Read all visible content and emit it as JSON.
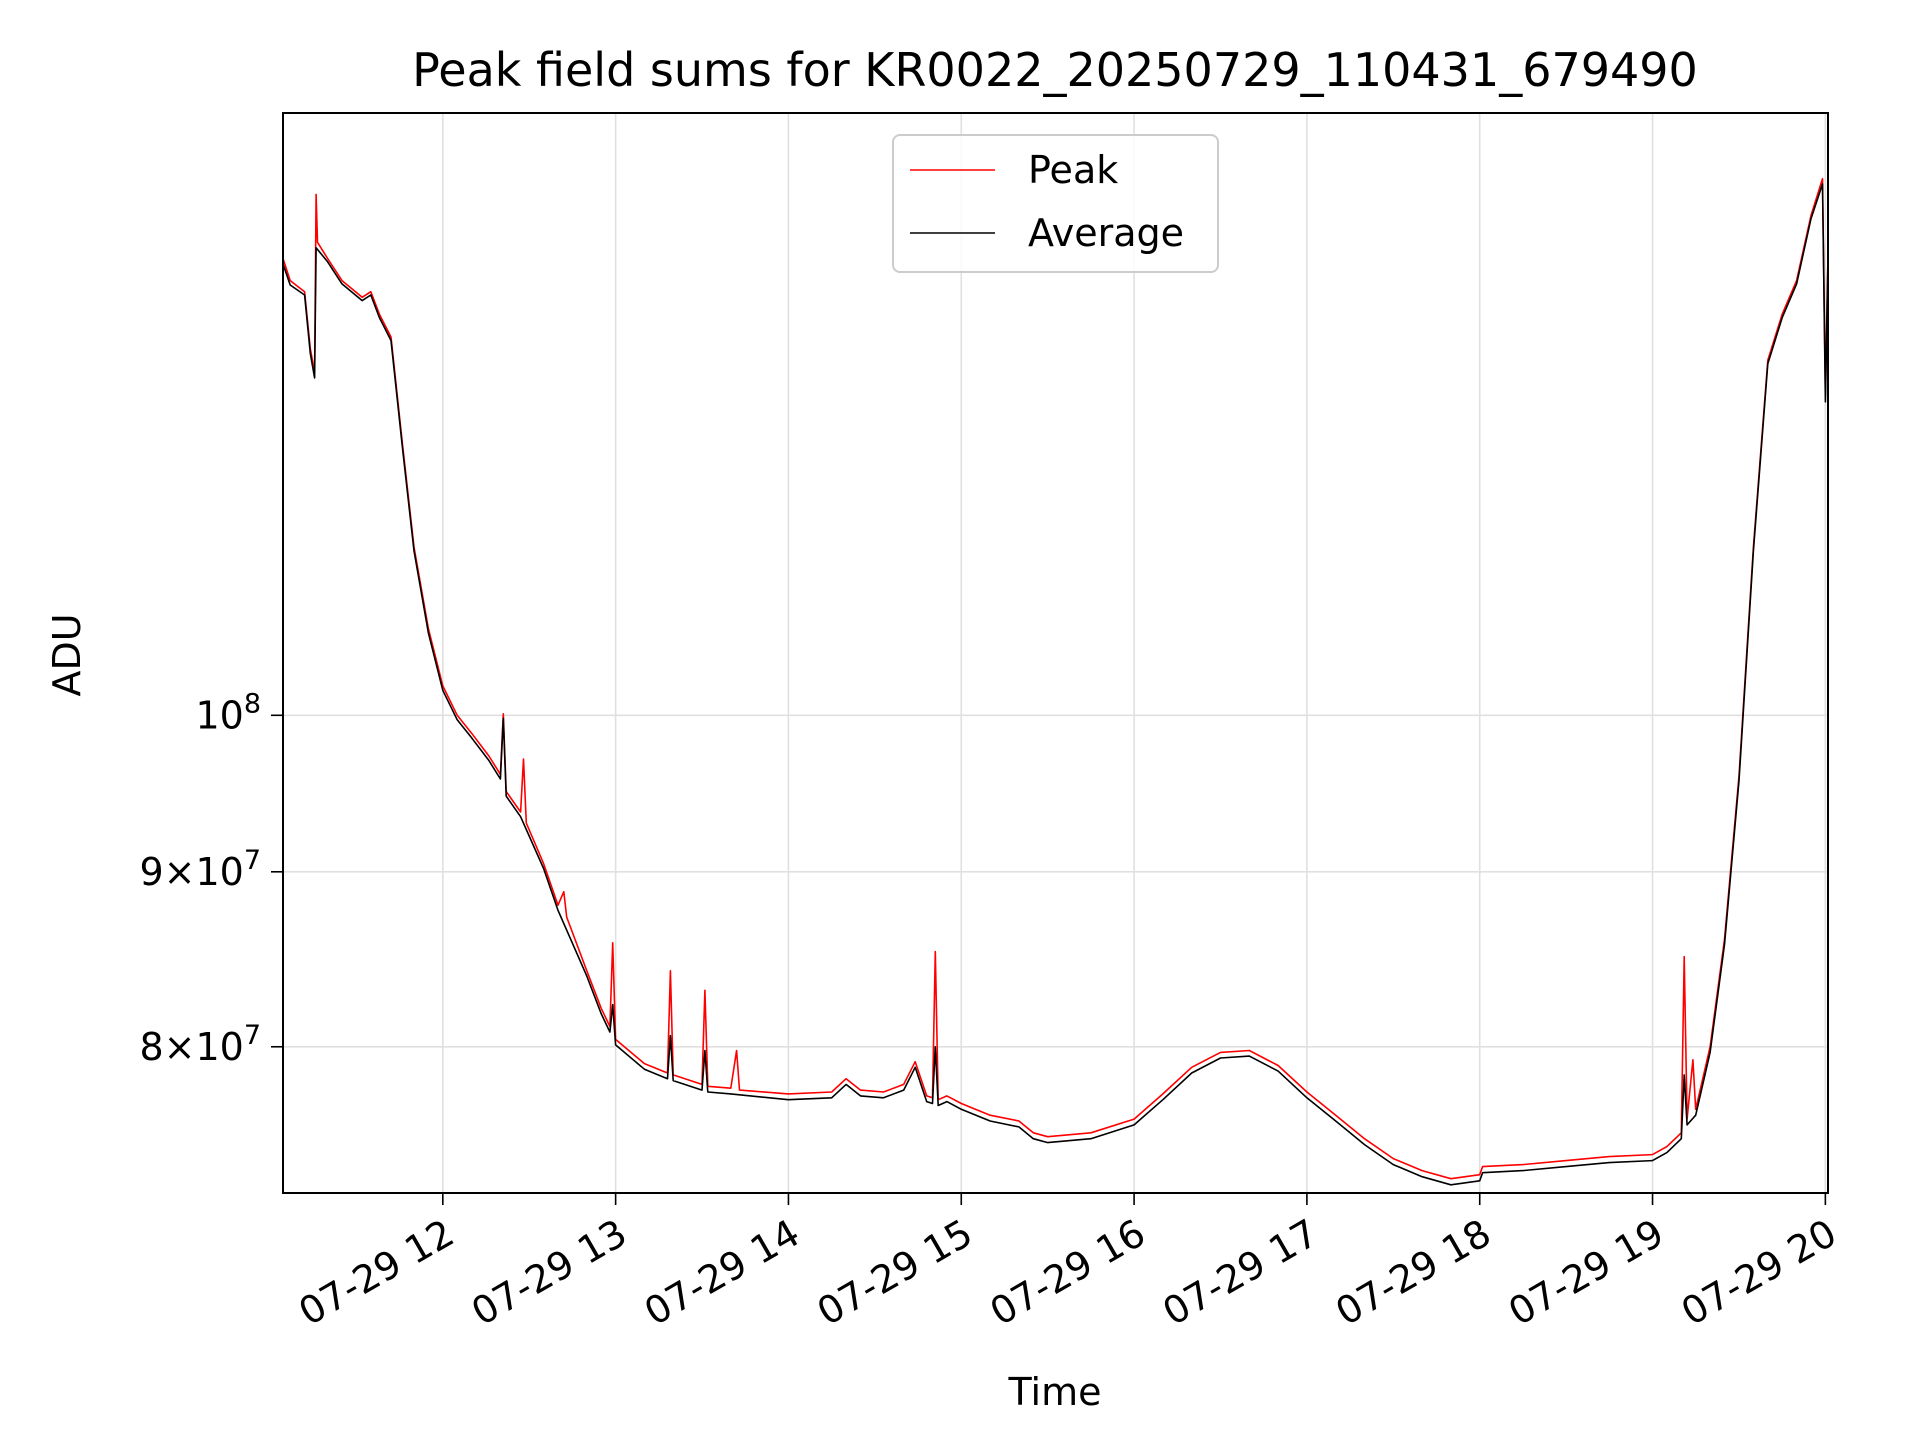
{
  "chart_data": {
    "type": "line",
    "title": "Peak field sums for KR0022_20250729_110431_679490",
    "xlabel": "Time",
    "ylabel": "ADU",
    "yscale": "log",
    "ylim": [
      72500000,
      150000000
    ],
    "xlim": [
      "2025-07-29 11:04:31",
      "2025-07-29 20:00:55"
    ],
    "x_ticks": [
      "07-29 12",
      "07-29 13",
      "07-29 14",
      "07-29 15",
      "07-29 16",
      "07-29 17",
      "07-29 18",
      "07-29 19",
      "07-29 20"
    ],
    "y_ticks": [
      {
        "value": 80000000,
        "mantissa": "8",
        "exponent": "7"
      },
      {
        "value": 90000000,
        "mantissa": "9",
        "exponent": "7"
      },
      {
        "value": 100000000,
        "mantissa": "",
        "exponent": "8"
      }
    ],
    "grid": true,
    "legend_position": "upper center",
    "colors": {
      "peak": "#ff0000",
      "average": "#000000",
      "grid": "#e0e0e0"
    },
    "series": [
      {
        "name": "Peak",
        "color": "#ff0000",
        "points": [
          [
            "2025-07-29 11:04:31",
            136000000
          ],
          [
            "2025-07-29 11:07:00",
            134000000
          ],
          [
            "2025-07-29 11:12:00",
            133000000
          ],
          [
            "2025-07-29 11:14:00",
            128000000
          ],
          [
            "2025-07-29 11:15:30",
            126000000
          ],
          [
            "2025-07-29 11:16:00",
            142000000
          ],
          [
            "2025-07-29 11:16:30",
            137500000
          ],
          [
            "2025-07-29 11:20:00",
            136000000
          ],
          [
            "2025-07-29 11:25:00",
            134000000
          ],
          [
            "2025-07-29 11:32:00",
            132500000
          ],
          [
            "2025-07-29 11:35:00",
            133000000
          ],
          [
            "2025-07-29 11:38:00",
            131000000
          ],
          [
            "2025-07-29 11:42:00",
            129000000
          ],
          [
            "2025-07-29 11:46:00",
            120000000
          ],
          [
            "2025-07-29 11:50:00",
            112000000
          ],
          [
            "2025-07-29 11:55:00",
            106000000
          ],
          [
            "2025-07-29 12:00:00",
            102000000
          ],
          [
            "2025-07-29 12:05:00",
            100000000
          ],
          [
            "2025-07-29 12:10:00",
            98800000
          ],
          [
            "2025-07-29 12:16:00",
            97300000
          ],
          [
            "2025-07-29 12:20:00",
            96100000
          ],
          [
            "2025-07-29 12:21:00",
            100100000
          ],
          [
            "2025-07-29 12:22:00",
            95000000
          ],
          [
            "2025-07-29 12:27:00",
            93700000
          ],
          [
            "2025-07-29 12:28:00",
            97100000
          ],
          [
            "2025-07-29 12:29:00",
            93000000
          ],
          [
            "2025-07-29 12:35:00",
            90500000
          ],
          [
            "2025-07-29 12:40:00",
            88000000
          ],
          [
            "2025-07-29 12:42:00",
            88800000
          ],
          [
            "2025-07-29 12:43:00",
            87300000
          ],
          [
            "2025-07-29 12:50:00",
            84200000
          ],
          [
            "2025-07-29 12:55:00",
            82100000
          ],
          [
            "2025-07-29 12:58:00",
            81100000
          ],
          [
            "2025-07-29 12:59:00",
            85800000
          ],
          [
            "2025-07-29 13:00:00",
            80400000
          ],
          [
            "2025-07-29 13:10:00",
            79100000
          ],
          [
            "2025-07-29 13:18:00",
            78600000
          ],
          [
            "2025-07-29 13:19:00",
            84200000
          ],
          [
            "2025-07-29 13:20:00",
            78500000
          ],
          [
            "2025-07-29 13:30:00",
            78000000
          ],
          [
            "2025-07-29 13:31:00",
            83100000
          ],
          [
            "2025-07-29 13:32:00",
            77900000
          ],
          [
            "2025-07-29 13:40:00",
            77800000
          ],
          [
            "2025-07-29 13:42:00",
            79800000
          ],
          [
            "2025-07-29 13:43:00",
            77700000
          ],
          [
            "2025-07-29 14:00:00",
            77500000
          ],
          [
            "2025-07-29 14:15:00",
            77600000
          ],
          [
            "2025-07-29 14:20:00",
            78300000
          ],
          [
            "2025-07-29 14:25:00",
            77700000
          ],
          [
            "2025-07-29 14:33:00",
            77600000
          ],
          [
            "2025-07-29 14:40:00",
            78000000
          ],
          [
            "2025-07-29 14:44:00",
            79200000
          ],
          [
            "2025-07-29 14:48:00",
            77400000
          ],
          [
            "2025-07-29 14:50:00",
            77300000
          ],
          [
            "2025-07-29 14:51:00",
            85300000
          ],
          [
            "2025-07-29 14:52:00",
            77200000
          ],
          [
            "2025-07-29 14:55:00",
            77400000
          ],
          [
            "2025-07-29 15:00:00",
            77000000
          ],
          [
            "2025-07-29 15:10:00",
            76400000
          ],
          [
            "2025-07-29 15:20:00",
            76100000
          ],
          [
            "2025-07-29 15:25:00",
            75500000
          ],
          [
            "2025-07-29 15:30:00",
            75300000
          ],
          [
            "2025-07-29 15:45:00",
            75500000
          ],
          [
            "2025-07-29 16:00:00",
            76200000
          ],
          [
            "2025-07-29 16:10:00",
            77500000
          ],
          [
            "2025-07-29 16:20:00",
            78900000
          ],
          [
            "2025-07-29 16:30:00",
            79700000
          ],
          [
            "2025-07-29 16:40:00",
            79800000
          ],
          [
            "2025-07-29 16:50:00",
            79000000
          ],
          [
            "2025-07-29 17:00:00",
            77600000
          ],
          [
            "2025-07-29 17:10:00",
            76400000
          ],
          [
            "2025-07-29 17:20:00",
            75200000
          ],
          [
            "2025-07-29 17:30:00",
            74200000
          ],
          [
            "2025-07-29 17:40:00",
            73600000
          ],
          [
            "2025-07-29 17:50:00",
            73200000
          ],
          [
            "2025-07-29 18:00:00",
            73400000
          ],
          [
            "2025-07-29 18:01:00",
            73800000
          ],
          [
            "2025-07-29 18:15:00",
            73900000
          ],
          [
            "2025-07-29 18:30:00",
            74100000
          ],
          [
            "2025-07-29 18:45:00",
            74300000
          ],
          [
            "2025-07-29 19:00:00",
            74400000
          ],
          [
            "2025-07-29 19:05:00",
            74800000
          ],
          [
            "2025-07-29 19:10:00",
            75500000
          ],
          [
            "2025-07-29 19:11:00",
            85000000
          ],
          [
            "2025-07-29 19:12:00",
            76200000
          ],
          [
            "2025-07-29 19:14:00",
            79300000
          ],
          [
            "2025-07-29 19:15:00",
            76700000
          ],
          [
            "2025-07-29 19:20:00",
            80000000
          ],
          [
            "2025-07-29 19:25:00",
            86000000
          ],
          [
            "2025-07-29 19:30:00",
            96000000
          ],
          [
            "2025-07-29 19:35:00",
            112000000
          ],
          [
            "2025-07-29 19:40:00",
            127000000
          ],
          [
            "2025-07-29 19:45:00",
            131000000
          ],
          [
            "2025-07-29 19:50:00",
            134000000
          ],
          [
            "2025-07-29 19:55:00",
            140000000
          ],
          [
            "2025-07-29 19:59:00",
            143500000
          ],
          [
            "2025-07-29 20:00:00",
            124000000
          ],
          [
            "2025-07-29 20:01:00",
            134000000
          ],
          [
            "2025-07-29 20:00:55",
            136500000
          ]
        ]
      },
      {
        "name": "Average",
        "color": "#000000",
        "points": [
          [
            "2025-07-29 11:04:31",
            135500000
          ],
          [
            "2025-07-29 11:07:00",
            133600000
          ],
          [
            "2025-07-29 11:12:00",
            132700000
          ],
          [
            "2025-07-29 11:14:00",
            127600000
          ],
          [
            "2025-07-29 11:15:30",
            125500000
          ],
          [
            "2025-07-29 11:16:00",
            137000000
          ],
          [
            "2025-07-29 11:20:00",
            135700000
          ],
          [
            "2025-07-29 11:25:00",
            133700000
          ],
          [
            "2025-07-29 11:32:00",
            132200000
          ],
          [
            "2025-07-29 11:35:00",
            132700000
          ],
          [
            "2025-07-29 11:38:00",
            130700000
          ],
          [
            "2025-07-29 11:42:00",
            128700000
          ],
          [
            "2025-07-29 11:46:00",
            119700000
          ],
          [
            "2025-07-29 11:50:00",
            111700000
          ],
          [
            "2025-07-29 11:55:00",
            105700000
          ],
          [
            "2025-07-29 12:00:00",
            101700000
          ],
          [
            "2025-07-29 12:05:00",
            99700000
          ],
          [
            "2025-07-29 12:10:00",
            98500000
          ],
          [
            "2025-07-29 12:16:00",
            97000000
          ],
          [
            "2025-07-29 12:20:00",
            95800000
          ],
          [
            "2025-07-29 12:21:00",
            99800000
          ],
          [
            "2025-07-29 12:22:00",
            94700000
          ],
          [
            "2025-07-29 12:27:00",
            93400000
          ],
          [
            "2025-07-29 12:35:00",
            90200000
          ],
          [
            "2025-07-29 12:40:00",
            87700000
          ],
          [
            "2025-07-29 12:50:00",
            83900000
          ],
          [
            "2025-07-29 12:55:00",
            81800000
          ],
          [
            "2025-07-29 12:58:00",
            80800000
          ],
          [
            "2025-07-29 12:59:00",
            82300000
          ],
          [
            "2025-07-29 13:00:00",
            80100000
          ],
          [
            "2025-07-29 13:10:00",
            78800000
          ],
          [
            "2025-07-29 13:18:00",
            78300000
          ],
          [
            "2025-07-29 13:19:00",
            80600000
          ],
          [
            "2025-07-29 13:20:00",
            78200000
          ],
          [
            "2025-07-29 13:30:00",
            77700000
          ],
          [
            "2025-07-29 13:31:00",
            79800000
          ],
          [
            "2025-07-29 13:32:00",
            77600000
          ],
          [
            "2025-07-29 13:40:00",
            77500000
          ],
          [
            "2025-07-29 14:00:00",
            77200000
          ],
          [
            "2025-07-29 14:15:00",
            77300000
          ],
          [
            "2025-07-29 14:20:00",
            78000000
          ],
          [
            "2025-07-29 14:25:00",
            77400000
          ],
          [
            "2025-07-29 14:33:00",
            77300000
          ],
          [
            "2025-07-29 14:40:00",
            77700000
          ],
          [
            "2025-07-29 14:44:00",
            78900000
          ],
          [
            "2025-07-29 14:48:00",
            77100000
          ],
          [
            "2025-07-29 14:50:00",
            77000000
          ],
          [
            "2025-07-29 14:51:00",
            80000000
          ],
          [
            "2025-07-29 14:52:00",
            76900000
          ],
          [
            "2025-07-29 14:55:00",
            77100000
          ],
          [
            "2025-07-29 15:00:00",
            76700000
          ],
          [
            "2025-07-29 15:10:00",
            76100000
          ],
          [
            "2025-07-29 15:20:00",
            75800000
          ],
          [
            "2025-07-29 15:25:00",
            75200000
          ],
          [
            "2025-07-29 15:30:00",
            75000000
          ],
          [
            "2025-07-29 15:45:00",
            75200000
          ],
          [
            "2025-07-29 16:00:00",
            75900000
          ],
          [
            "2025-07-29 16:10:00",
            77200000
          ],
          [
            "2025-07-29 16:20:00",
            78600000
          ],
          [
            "2025-07-29 16:30:00",
            79400000
          ],
          [
            "2025-07-29 16:40:00",
            79500000
          ],
          [
            "2025-07-29 16:50:00",
            78700000
          ],
          [
            "2025-07-29 17:00:00",
            77300000
          ],
          [
            "2025-07-29 17:10:00",
            76100000
          ],
          [
            "2025-07-29 17:20:00",
            74900000
          ],
          [
            "2025-07-29 17:30:00",
            73900000
          ],
          [
            "2025-07-29 17:40:00",
            73300000
          ],
          [
            "2025-07-29 17:50:00",
            72900000
          ],
          [
            "2025-07-29 18:00:00",
            73100000
          ],
          [
            "2025-07-29 18:01:00",
            73500000
          ],
          [
            "2025-07-29 18:15:00",
            73600000
          ],
          [
            "2025-07-29 18:30:00",
            73800000
          ],
          [
            "2025-07-29 18:45:00",
            74000000
          ],
          [
            "2025-07-29 19:00:00",
            74100000
          ],
          [
            "2025-07-29 19:05:00",
            74500000
          ],
          [
            "2025-07-29 19:10:00",
            75200000
          ],
          [
            "2025-07-29 19:11:00",
            78500000
          ],
          [
            "2025-07-29 19:12:00",
            75900000
          ],
          [
            "2025-07-29 19:15:00",
            76400000
          ],
          [
            "2025-07-29 19:20:00",
            79700000
          ],
          [
            "2025-07-29 19:25:00",
            85700000
          ],
          [
            "2025-07-29 19:30:00",
            95700000
          ],
          [
            "2025-07-29 19:35:00",
            111700000
          ],
          [
            "2025-07-29 19:40:00",
            126700000
          ],
          [
            "2025-07-29 19:45:00",
            130700000
          ],
          [
            "2025-07-29 19:50:00",
            133700000
          ],
          [
            "2025-07-29 19:55:00",
            139700000
          ],
          [
            "2025-07-29 19:59:00",
            143000000
          ],
          [
            "2025-07-29 20:00:00",
            123500000
          ],
          [
            "2025-07-29 20:01:00",
            133700000
          ],
          [
            "2025-07-29 20:00:55",
            136000000
          ]
        ]
      }
    ]
  }
}
